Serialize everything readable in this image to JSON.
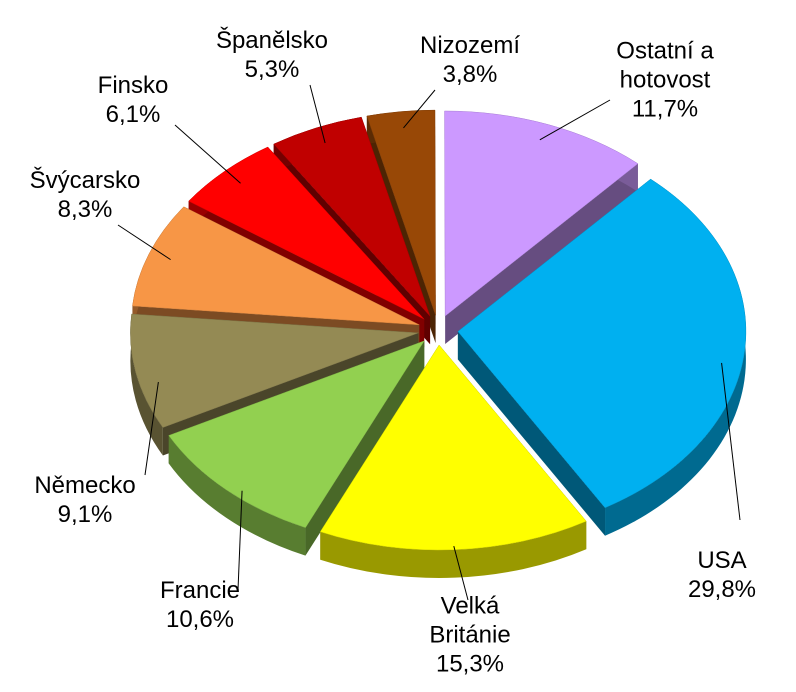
{
  "chart_data": {
    "type": "pie",
    "categories": [
      "USA",
      "Velká Británie",
      "Francie",
      "Německo",
      "Švýcarsko",
      "Finsko",
      "Španělsko",
      "Nizozemí",
      "Ostatní a hotovost"
    ],
    "values": [
      29.8,
      15.3,
      10.6,
      9.1,
      8.3,
      6.1,
      5.3,
      3.8,
      11.7
    ],
    "value_labels": [
      "29,8%",
      "15,3%",
      "10,6%",
      "9,1%",
      "8,3%",
      "6,1%",
      "5,3%",
      "3,8%",
      "11,7%"
    ],
    "colors": [
      "#00b0f0",
      "#ffff00",
      "#92d050",
      "#948a54",
      "#f79646",
      "#ff0000",
      "#c00000",
      "#984806",
      "#cc99ff"
    ]
  }
}
